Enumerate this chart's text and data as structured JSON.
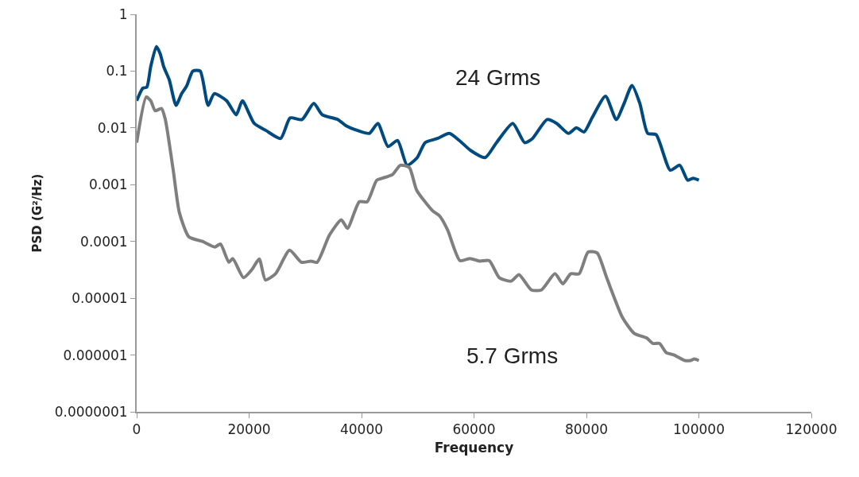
{
  "chart_data": {
    "type": "line",
    "xlabel": "Frequency",
    "ylabel": "PSD (G²/Hz)",
    "log": "y",
    "grid": false,
    "marker": "none",
    "line_style": "solid",
    "xlim": [
      0,
      120000
    ],
    "xticks": [
      0,
      20000,
      40000,
      60000,
      80000,
      100000,
      120000
    ],
    "ylim": [
      1e-07,
      1
    ],
    "yticks": [
      {
        "value": 1e-07,
        "label": "0.0000001"
      },
      {
        "value": 1e-06,
        "label": "0.000001"
      },
      {
        "value": 1e-05,
        "label": "0.00001"
      },
      0.0001,
      0.001,
      0.01,
      0.1,
      1
    ],
    "annotations": [
      "24 Grms",
      "5.7 Grms"
    ],
    "series": [
      {
        "color": "#004a80",
        "x": [
          0,
          1100,
          1800,
          2500,
          3500,
          4200,
          4800,
          5800,
          7000,
          8000,
          8900,
          10000,
          11300,
          12700,
          13800,
          16000,
          17700,
          18800,
          20900,
          23000,
          25600,
          27300,
          29400,
          31500,
          33000,
          35800,
          37200,
          39300,
          41400,
          42900,
          44700,
          46400,
          48100,
          49900,
          51300,
          53500,
          55600,
          57400,
          59400,
          62000,
          64000,
          66900,
          69000,
          70400,
          73000,
          74700,
          76800,
          78200,
          79600,
          81000,
          83400,
          85300,
          86700,
          88100,
          89500,
          90900,
          92400,
          94900,
          96600,
          98000,
          99000,
          100000
        ],
        "values": [
          0.03,
          0.05,
          0.052,
          0.12,
          0.27,
          0.2,
          0.12,
          0.07,
          0.025,
          0.04,
          0.055,
          0.1,
          0.1,
          0.025,
          0.04,
          0.03,
          0.017,
          0.03,
          0.012,
          0.009,
          0.0065,
          0.015,
          0.014,
          0.027,
          0.017,
          0.014,
          0.011,
          0.009,
          0.008,
          0.012,
          0.0047,
          0.006,
          0.0022,
          0.003,
          0.0055,
          0.0065,
          0.008,
          0.006,
          0.004,
          0.003,
          0.0055,
          0.012,
          0.0055,
          0.0065,
          0.014,
          0.012,
          0.008,
          0.01,
          0.0085,
          0.015,
          0.036,
          0.014,
          0.027,
          0.056,
          0.027,
          0.008,
          0.0076,
          0.0018,
          0.0022,
          0.0012,
          0.0013,
          0.0012
        ]
      },
      {
        "color": "#7f7f7f",
        "x": [
          0,
          1700,
          2500,
          3300,
          4400,
          5100,
          6500,
          7600,
          9300,
          11700,
          13900,
          14900,
          16400,
          17100,
          19000,
          20500,
          21800,
          22900,
          24700,
          27200,
          29300,
          31000,
          32100,
          34300,
          36400,
          37500,
          39600,
          41000,
          42700,
          43700,
          45500,
          46900,
          48500,
          49800,
          52600,
          53900,
          55300,
          57500,
          59300,
          61000,
          62700,
          64500,
          66600,
          68000,
          70200,
          72000,
          74400,
          75800,
          77200,
          78700,
          80300,
          81900,
          83600,
          86400,
          88500,
          90700,
          91800,
          93000,
          94200,
          95600,
          97500,
          98500,
          99200,
          100000
        ],
        "values": [
          0.0055,
          0.035,
          0.03,
          0.02,
          0.022,
          0.014,
          0.0018,
          0.00032,
          0.00012,
          0.0001,
          8e-05,
          9e-05,
          4.3e-05,
          5e-05,
          2.3e-05,
          3.2e-05,
          4.9e-05,
          2.1e-05,
          2.7e-05,
          7e-05,
          4.3e-05,
          4.5e-05,
          4.3e-05,
          0.00013,
          0.00024,
          0.00017,
          0.0005,
          0.0005,
          0.0012,
          0.0013,
          0.0015,
          0.0022,
          0.002,
          0.0008,
          0.00035,
          0.00028,
          0.00016,
          4.6e-05,
          5e-05,
          4.5e-05,
          4.6e-05,
          2.3e-05,
          2e-05,
          2.6e-05,
          1.4e-05,
          1.4e-05,
          2.7e-05,
          1.8e-05,
          2.7e-05,
          2.7e-05,
          6.5e-05,
          6.3e-05,
          2.3e-05,
          4.6e-06,
          2.4e-06,
          2e-06,
          1.6e-06,
          1.6e-06,
          1.1e-06,
          1e-06,
          8e-07,
          8e-07,
          8.5e-07,
          8e-07
        ]
      }
    ]
  }
}
